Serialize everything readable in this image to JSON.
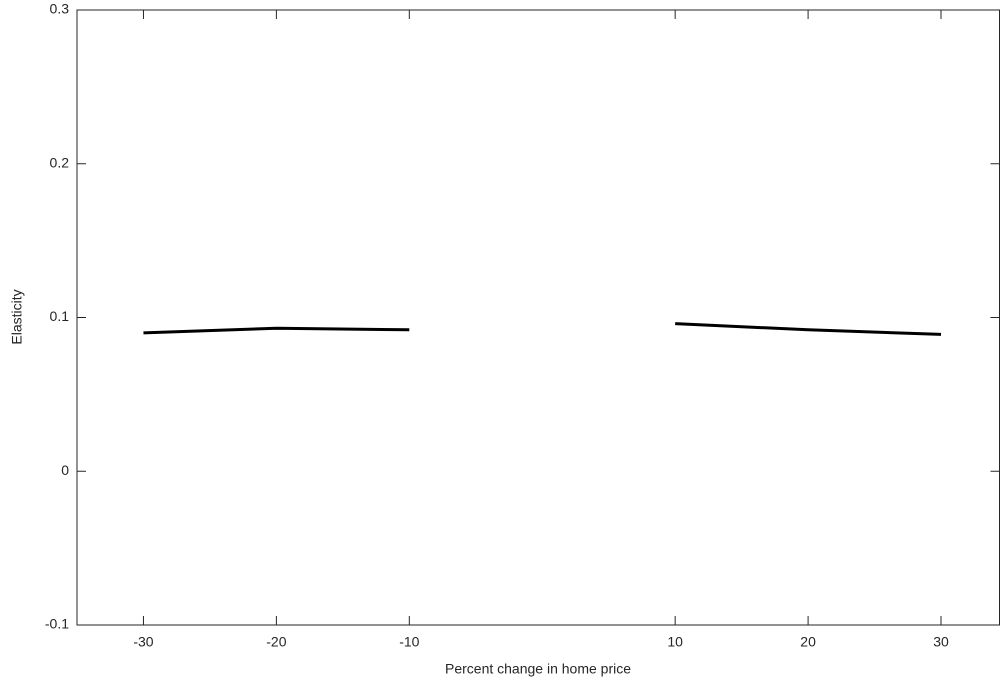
{
  "chart_data": {
    "type": "line",
    "x_label": "Percent change in home price",
    "y_label": "Elasticity",
    "x": [
      -30,
      -20,
      -10,
      0,
      10,
      20,
      30
    ],
    "series": [
      {
        "color": "#000000",
        "values": [
          0.09,
          0.093,
          0.092,
          null,
          0.096,
          0.092,
          0.089
        ]
      }
    ],
    "xlim": [
      -35,
      34.4
    ],
    "xticks": [
      -30,
      -20,
      -10,
      10,
      20,
      30
    ],
    "ylim": [
      -0.1,
      0.3
    ],
    "yticks": [
      -0.1,
      0,
      0.1,
      0.2,
      0.3
    ],
    "grid": false
  }
}
